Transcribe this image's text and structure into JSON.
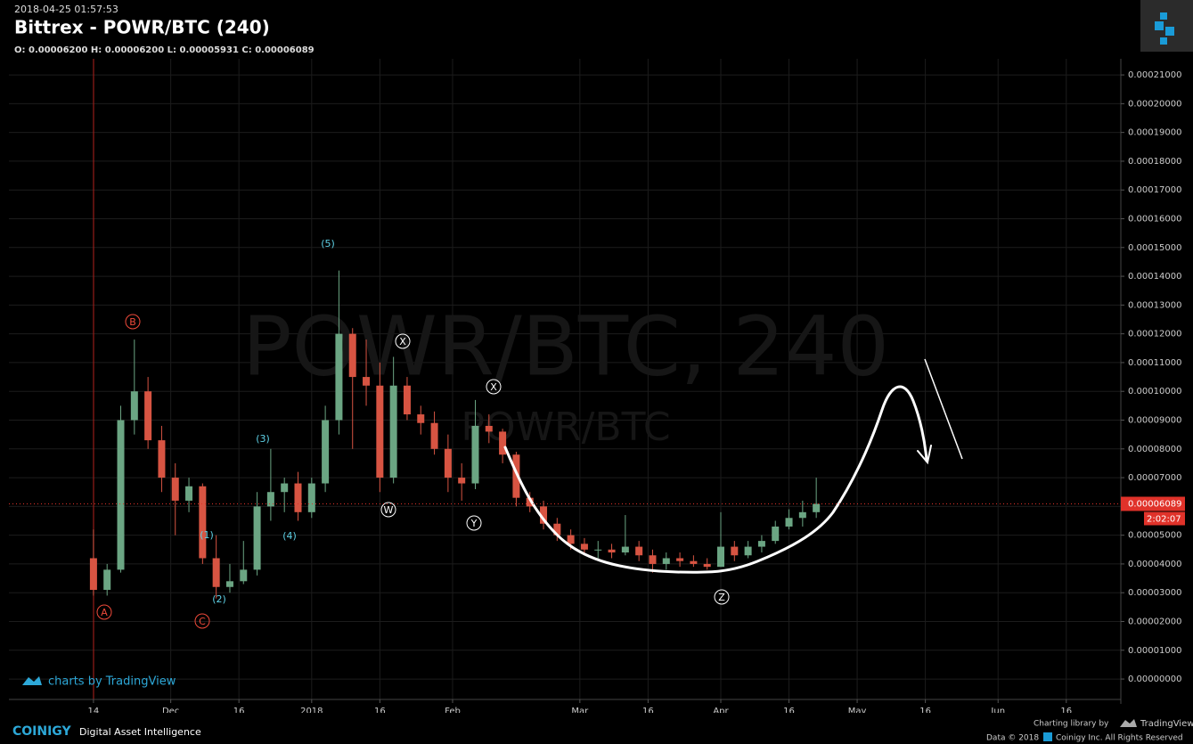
{
  "header": {
    "timestamp": "2018-04-25 01:57:53",
    "title": "Bittrex - POWR/BTC (240)",
    "ohlc": "O: 0.00006200 H: 0.00006200 L: 0.00005931 C: 0.00006089"
  },
  "chart_data": {
    "type": "candlestick",
    "watermark": "POWR/BTC, 240",
    "watermark_sub": "POWR/BTC",
    "x": [
      0,
      3,
      6,
      9,
      12,
      15,
      18,
      21,
      24,
      27,
      30,
      33,
      36,
      39,
      42,
      45,
      48,
      51,
      54,
      57,
      60,
      63,
      66,
      69,
      72,
      75,
      78,
      81,
      84,
      87,
      90,
      93,
      96,
      99,
      102,
      105,
      108,
      111,
      114,
      117,
      120,
      123,
      126,
      129,
      132,
      135,
      138,
      141,
      144,
      147,
      150,
      153,
      156,
      159
    ],
    "open": [
      4.2e-05,
      3.1e-05,
      3.8e-05,
      9e-05,
      0.0001,
      8.3e-05,
      7e-05,
      6.2e-05,
      6.7e-05,
      4.2e-05,
      3.2e-05,
      3.4e-05,
      3.8e-05,
      6e-05,
      6.5e-05,
      6.8e-05,
      5.8e-05,
      6.8e-05,
      9e-05,
      0.00012,
      0.000105,
      0.000102,
      7e-05,
      0.000102,
      9.2e-05,
      8.9e-05,
      8e-05,
      7e-05,
      6.8e-05,
      8.8e-05,
      8.6e-05,
      7.8e-05,
      6.3e-05,
      6e-05,
      5.4e-05,
      5e-05,
      4.7e-05,
      4.5e-05,
      4.5e-05,
      4.4e-05,
      4.6e-05,
      4.3e-05,
      4e-05,
      4.2e-05,
      4.1e-05,
      4e-05,
      3.9e-05,
      4.6e-05,
      4.3e-05,
      4.6e-05,
      4.8e-05,
      5.3e-05,
      5.6e-05,
      5.8e-05
    ],
    "high": [
      5.2e-05,
      4e-05,
      9.5e-05,
      0.000118,
      0.000105,
      8.8e-05,
      7.5e-05,
      7e-05,
      6.8e-05,
      5e-05,
      4e-05,
      4.8e-05,
      6.5e-05,
      8e-05,
      7e-05,
      7.2e-05,
      7e-05,
      9.5e-05,
      0.000142,
      0.000122,
      0.000118,
      0.00011,
      0.000112,
      0.000105,
      9.5e-05,
      9.3e-05,
      8.5e-05,
      7.5e-05,
      9.7e-05,
      9.2e-05,
      8.7e-05,
      7.9e-05,
      6.5e-05,
      6.2e-05,
      5.6e-05,
      5.2e-05,
      4.9e-05,
      4.8e-05,
      4.7e-05,
      5.7e-05,
      4.8e-05,
      4.5e-05,
      4.4e-05,
      4.4e-05,
      4.3e-05,
      4.2e-05,
      5.8e-05,
      4.8e-05,
      4.8e-05,
      5e-05,
      5.5e-05,
      5.9e-05,
      6.2e-05,
      7e-05
    ],
    "low": [
      2.9e-05,
      2.9e-05,
      3.7e-05,
      8.5e-05,
      8e-05,
      6.5e-05,
      5e-05,
      5.8e-05,
      4e-05,
      2.8e-05,
      3e-05,
      3.3e-05,
      3.6e-05,
      5.5e-05,
      5.8e-05,
      5.5e-05,
      5.6e-05,
      6.5e-05,
      8.5e-05,
      8e-05,
      9.5e-05,
      6.5e-05,
      6.8e-05,
      9e-05,
      8.5e-05,
      7.8e-05,
      6.5e-05,
      6.2e-05,
      6.6e-05,
      8.2e-05,
      7.5e-05,
      6e-05,
      5.8e-05,
      5.2e-05,
      4.8e-05,
      4.5e-05,
      4.3e-05,
      4.2e-05,
      4.2e-05,
      4.3e-05,
      4.1e-05,
      3.7e-05,
      3.8e-05,
      3.9e-05,
      3.9e-05,
      3.8e-05,
      3.9e-05,
      4.1e-05,
      4.2e-05,
      4.4e-05,
      4.7e-05,
      5.2e-05,
      5.3e-05,
      5.6e-05
    ],
    "close": [
      3.1e-05,
      3.8e-05,
      9e-05,
      0.0001,
      8.3e-05,
      7e-05,
      6.2e-05,
      6.7e-05,
      4.2e-05,
      3.2e-05,
      3.4e-05,
      3.8e-05,
      6e-05,
      6.5e-05,
      6.8e-05,
      5.8e-05,
      6.8e-05,
      9e-05,
      0.00012,
      0.000105,
      0.000102,
      7e-05,
      0.000102,
      9.2e-05,
      8.9e-05,
      8e-05,
      7e-05,
      6.8e-05,
      8.8e-05,
      8.6e-05,
      7.8e-05,
      6.3e-05,
      6e-05,
      5.4e-05,
      5e-05,
      4.7e-05,
      4.5e-05,
      4.5e-05,
      4.4e-05,
      4.6e-05,
      4.3e-05,
      4e-05,
      4.2e-05,
      4.1e-05,
      4e-05,
      3.9e-05,
      4.6e-05,
      4.3e-05,
      4.6e-05,
      4.8e-05,
      5.3e-05,
      5.6e-05,
      5.8e-05,
      6.089e-05
    ],
    "up_color": "#6ba583",
    "down_color": "#d75442",
    "xlim": [
      -18.6,
      226
    ],
    "xticks": [
      {
        "value": 0,
        "label": "14"
      },
      {
        "value": 17,
        "label": "Dec"
      },
      {
        "value": 32,
        "label": "16"
      },
      {
        "value": 48,
        "label": "2018"
      },
      {
        "value": 63,
        "label": "16"
      },
      {
        "value": 79,
        "label": "Feb"
      },
      {
        "value": 107,
        "label": "Mar"
      },
      {
        "value": 122,
        "label": "16"
      },
      {
        "value": 138,
        "label": "Apr"
      },
      {
        "value": 153,
        "label": "16"
      },
      {
        "value": 168,
        "label": "May"
      },
      {
        "value": 183,
        "label": "16"
      },
      {
        "value": 199,
        "label": "Jun"
      },
      {
        "value": 214,
        "label": "16"
      }
    ],
    "ylim": [
      -7.1e-06,
      0.0002156
    ],
    "yticks": [
      {
        "value": 0.00021,
        "label": "0.00021000"
      },
      {
        "value": 0.0002,
        "label": "0.00020000"
      },
      {
        "value": 0.00019,
        "label": "0.00019000"
      },
      {
        "value": 0.00018,
        "label": "0.00018000"
      },
      {
        "value": 0.00017,
        "label": "0.00017000"
      },
      {
        "value": 0.00016,
        "label": "0.00016000"
      },
      {
        "value": 0.00015,
        "label": "0.00015000"
      },
      {
        "value": 0.00014,
        "label": "0.00014000"
      },
      {
        "value": 0.00013,
        "label": "0.00013000"
      },
      {
        "value": 0.00012,
        "label": "0.00012000"
      },
      {
        "value": 0.00011,
        "label": "0.00011000"
      },
      {
        "value": 0.0001,
        "label": "0.00010000"
      },
      {
        "value": 9e-05,
        "label": "0.00009000"
      },
      {
        "value": 8e-05,
        "label": "0.00008000"
      },
      {
        "value": 7e-05,
        "label": "0.00007000"
      },
      {
        "value": 6e-05,
        "label": "0.00006000"
      },
      {
        "value": 5e-05,
        "label": "0.00005000"
      },
      {
        "value": 4e-05,
        "label": "0.00004000"
      },
      {
        "value": 3e-05,
        "label": "0.00003000"
      },
      {
        "value": 2e-05,
        "label": "0.00002000"
      },
      {
        "value": 1e-05,
        "label": "0.00001000"
      },
      {
        "value": 0,
        "label": "0.00000000"
      }
    ],
    "grid": true,
    "last_price": {
      "value": 6.089e-05,
      "label": "0.00006089"
    },
    "countdown": "2:02:07",
    "annotations": [
      "A",
      "B",
      "C",
      "(1)",
      "(2)",
      "(3)",
      "(4)",
      "(5)",
      "W",
      "X",
      "Y",
      "X",
      "Z"
    ]
  },
  "footer": {
    "tv_credit": "charts by TradingView",
    "brand": "COINIGY",
    "tagline": "Digital Asset Intelligence",
    "library": "Charting library by",
    "library_name": "TradingView",
    "data": "Data © 2018",
    "rights": "Coinigy Inc. All Rights Reserved"
  }
}
